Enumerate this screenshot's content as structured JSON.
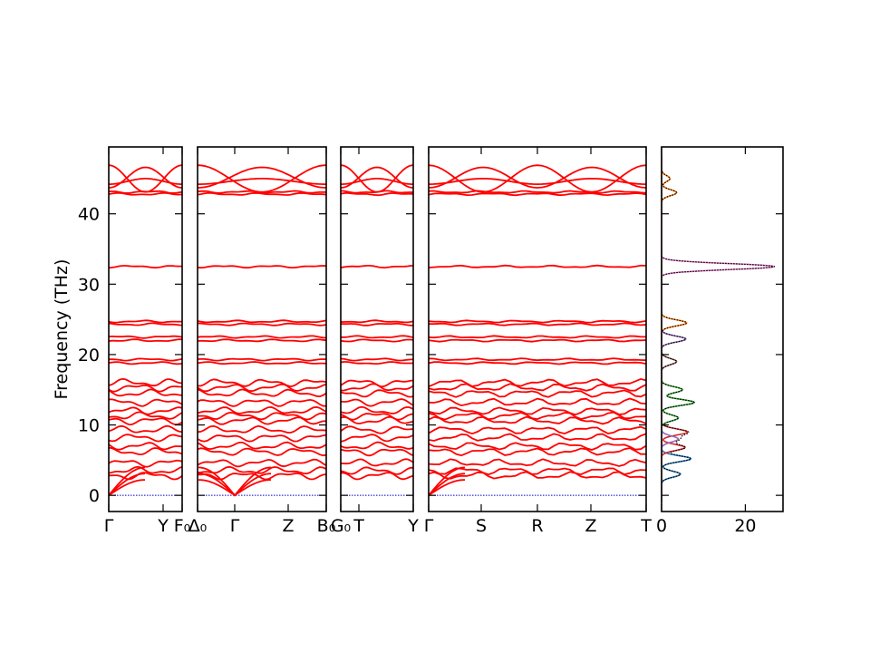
{
  "chart_data": [
    {
      "type": "line",
      "title": "",
      "ylabel": "Frequency (THz)",
      "ylim": [
        -2.3,
        49.5
      ],
      "yticks": [
        0,
        10,
        20,
        30,
        40
      ],
      "panels": [
        {
          "labels": [
            "Γ",
            "Y",
            "F₀"
          ]
        },
        {
          "labels": [
            "Δ₀",
            "Γ",
            "Z",
            "B₀"
          ]
        },
        {
          "labels": [
            "G₀",
            "T",
            "Y"
          ]
        },
        {
          "labels": [
            "Γ",
            "S",
            "R",
            "Z",
            "T"
          ]
        }
      ],
      "band_color": "#ff0000",
      "zero_line_color": "#0000cc",
      "flat_bands_thz": [
        2.8,
        3.5,
        4.6,
        6.2,
        7.0,
        8.2,
        9.3,
        10.6,
        11.3,
        12.0,
        13.2,
        14.5,
        15.3,
        16.0,
        18.8,
        19.3,
        22.0,
        22.5,
        24.3,
        24.7,
        32.5,
        42.8,
        43.1
      ],
      "upper_bands_thz": [
        {
          "name": "",
          "gamma": 43.7,
          "mid": 46.6
        },
        {
          "name": "",
          "gamma": 44.2,
          "mid": 45.0
        },
        {
          "name": "",
          "gamma": 46.9,
          "mid": 43.1
        }
      ],
      "acoustic_max_thz": 4.0
    },
    {
      "type": "area",
      "title": "",
      "xlabel": "",
      "xlim": [
        0,
        29
      ],
      "xticks": [
        0,
        20
      ],
      "series": [
        {
          "color": "#1f77b4",
          "peaks": [
            [
              3.0,
              4.5
            ],
            [
              5.2,
              7.0
            ]
          ]
        },
        {
          "color": "#d62728",
          "peaks": [
            [
              6.8,
              5.6
            ],
            [
              9.0,
              6.2
            ]
          ]
        },
        {
          "color": "#9467bd",
          "peaks": [
            [
              8.0,
              4.0
            ],
            [
              22.2,
              5.8
            ]
          ]
        },
        {
          "color": "#2ca02c",
          "peaks": [
            [
              11.0,
              4.0
            ],
            [
              13.2,
              7.8
            ],
            [
              15.0,
              5.0
            ]
          ]
        },
        {
          "color": "#ff7f0e",
          "peaks": [
            [
              24.5,
              6.0
            ],
            [
              43.0,
              3.6
            ],
            [
              45.0,
              2.0
            ]
          ]
        },
        {
          "color": "#8c564b",
          "peaks": [
            [
              19.0,
              3.6
            ]
          ]
        },
        {
          "color": "#e377c2",
          "peaks": [
            [
              32.5,
              27.0
            ]
          ]
        }
      ]
    }
  ]
}
